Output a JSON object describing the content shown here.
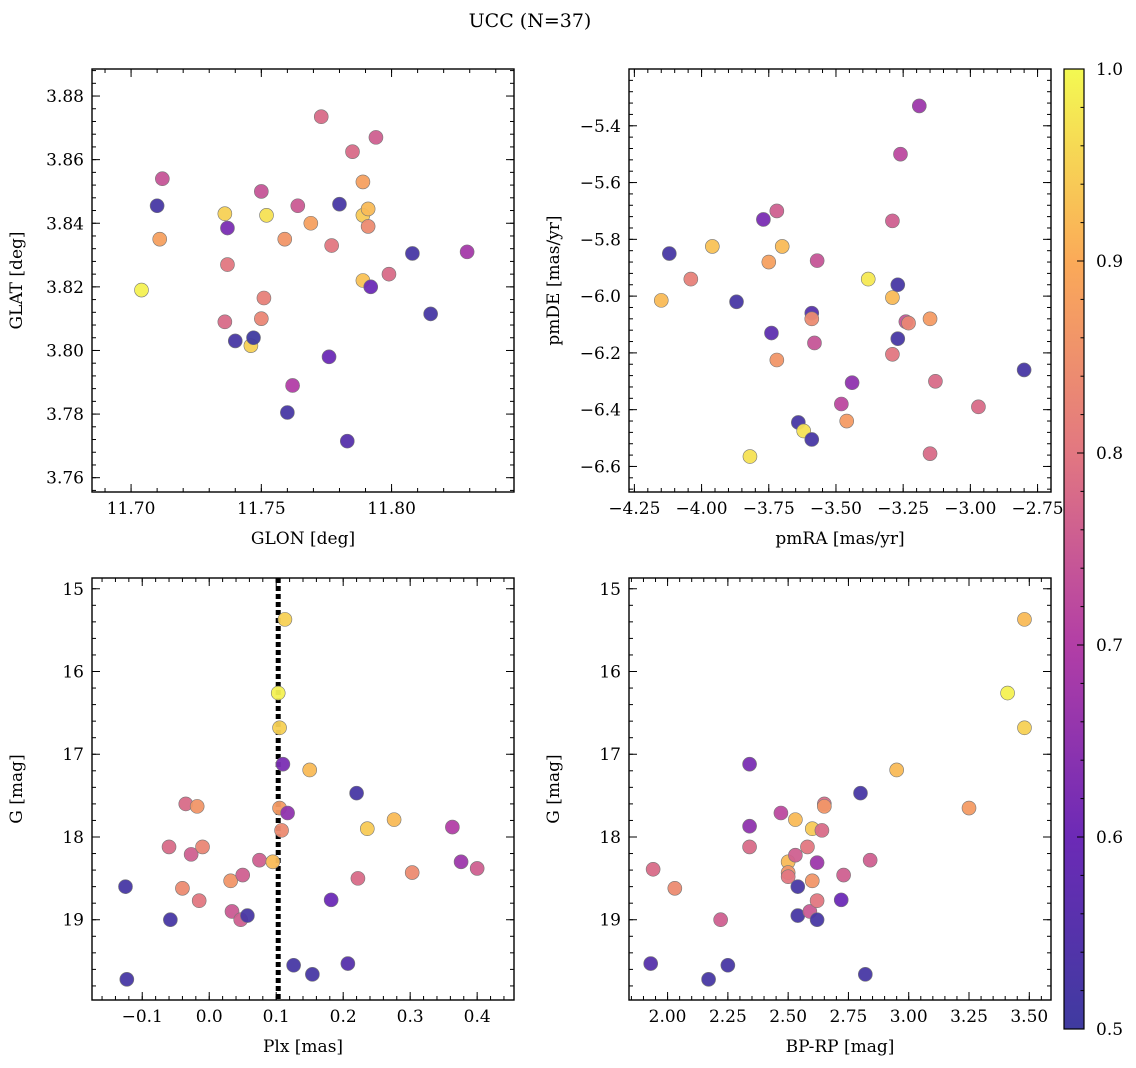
{
  "figure": {
    "title": "UCC (N=37)"
  },
  "colorbar": {
    "range": [
      0.5,
      1.0
    ],
    "ticks": [
      0.5,
      0.6,
      0.7,
      0.8,
      0.9,
      1.0
    ],
    "tick_labels": [
      "0.5",
      "0.6",
      "0.7",
      "0.8",
      "0.9",
      "1.0"
    ],
    "colormap": "plasma"
  },
  "chart_data": [
    {
      "type": "scatter",
      "xlabel": "GLON [deg]",
      "ylabel": "GLAT [deg]",
      "xlim": [
        11.685,
        11.847
      ],
      "ylim": [
        3.7555,
        3.8885
      ],
      "inverted_y": false,
      "xticks": [
        11.7,
        11.75,
        11.8
      ],
      "xtick_labels": [
        "11.70",
        "11.75",
        "11.80"
      ],
      "yticks": [
        3.76,
        3.78,
        3.8,
        3.82,
        3.84,
        3.86,
        3.88
      ],
      "ytick_labels": [
        "3.76",
        "3.78",
        "3.80",
        "3.82",
        "3.84",
        "3.86",
        "3.88"
      ],
      "points": [
        {
          "x": 11.704,
          "y": 3.819,
          "c": 0.99
        },
        {
          "x": 11.71,
          "y": 3.8455,
          "c": 0.52
        },
        {
          "x": 11.711,
          "y": 3.835,
          "c": 0.88
        },
        {
          "x": 11.712,
          "y": 3.854,
          "c": 0.74
        },
        {
          "x": 11.736,
          "y": 3.843,
          "c": 0.95
        },
        {
          "x": 11.737,
          "y": 3.8385,
          "c": 0.62
        },
        {
          "x": 11.737,
          "y": 3.827,
          "c": 0.8
        },
        {
          "x": 11.736,
          "y": 3.809,
          "c": 0.78
        },
        {
          "x": 11.74,
          "y": 3.803,
          "c": 0.52
        },
        {
          "x": 11.746,
          "y": 3.8015,
          "c": 0.95
        },
        {
          "x": 11.747,
          "y": 3.804,
          "c": 0.5
        },
        {
          "x": 11.75,
          "y": 3.85,
          "c": 0.74
        },
        {
          "x": 11.75,
          "y": 3.81,
          "c": 0.83
        },
        {
          "x": 11.751,
          "y": 3.8165,
          "c": 0.82
        },
        {
          "x": 11.752,
          "y": 3.8425,
          "c": 0.97
        },
        {
          "x": 11.759,
          "y": 3.835,
          "c": 0.86
        },
        {
          "x": 11.76,
          "y": 3.7805,
          "c": 0.52
        },
        {
          "x": 11.762,
          "y": 3.789,
          "c": 0.7
        },
        {
          "x": 11.764,
          "y": 3.8455,
          "c": 0.75
        },
        {
          "x": 11.769,
          "y": 3.84,
          "c": 0.88
        },
        {
          "x": 11.773,
          "y": 3.8735,
          "c": 0.78
        },
        {
          "x": 11.776,
          "y": 3.798,
          "c": 0.6
        },
        {
          "x": 11.777,
          "y": 3.833,
          "c": 0.8
        },
        {
          "x": 11.78,
          "y": 3.846,
          "c": 0.52
        },
        {
          "x": 11.783,
          "y": 3.7715,
          "c": 0.55
        },
        {
          "x": 11.785,
          "y": 3.8625,
          "c": 0.78
        },
        {
          "x": 11.789,
          "y": 3.853,
          "c": 0.88
        },
        {
          "x": 11.789,
          "y": 3.8425,
          "c": 0.94
        },
        {
          "x": 11.789,
          "y": 3.822,
          "c": 0.93
        },
        {
          "x": 11.791,
          "y": 3.8445,
          "c": 0.92
        },
        {
          "x": 11.791,
          "y": 3.839,
          "c": 0.84
        },
        {
          "x": 11.792,
          "y": 3.82,
          "c": 0.6
        },
        {
          "x": 11.794,
          "y": 3.867,
          "c": 0.76
        },
        {
          "x": 11.799,
          "y": 3.824,
          "c": 0.78
        },
        {
          "x": 11.808,
          "y": 3.8305,
          "c": 0.52
        },
        {
          "x": 11.815,
          "y": 3.8115,
          "c": 0.52
        },
        {
          "x": 11.829,
          "y": 3.831,
          "c": 0.68
        }
      ]
    },
    {
      "type": "scatter",
      "xlabel": "pmRA [mas/yr]",
      "ylabel": "pmDE [mas/yr]",
      "xlim": [
        -4.27,
        -2.7
      ],
      "ylim": [
        -6.69,
        -5.2
      ],
      "inverted_y": false,
      "xticks": [
        -4.25,
        -4.0,
        -3.75,
        -3.5,
        -3.25,
        -3.0,
        -2.75
      ],
      "xtick_labels": [
        "−4.25",
        "−4.00",
        "−3.75",
        "−3.50",
        "−3.25",
        "−3.00",
        "−2.75"
      ],
      "yticks": [
        -6.6,
        -6.4,
        -6.2,
        -6.0,
        -5.8,
        -5.6,
        -5.4
      ],
      "ytick_labels": [
        "−6.6",
        "−6.4",
        "−6.2",
        "−6.0",
        "−5.8",
        "−5.6",
        "−5.4"
      ],
      "points": [
        {
          "x": -4.15,
          "y": -6.015,
          "c": 0.92
        },
        {
          "x": -4.12,
          "y": -5.85,
          "c": 0.52
        },
        {
          "x": -4.04,
          "y": -5.94,
          "c": 0.82
        },
        {
          "x": -3.96,
          "y": -5.825,
          "c": 0.93
        },
        {
          "x": -3.87,
          "y": -6.02,
          "c": 0.52
        },
        {
          "x": -3.82,
          "y": -6.565,
          "c": 0.97
        },
        {
          "x": -3.77,
          "y": -5.73,
          "c": 0.62
        },
        {
          "x": -3.75,
          "y": -5.88,
          "c": 0.88
        },
        {
          "x": -3.74,
          "y": -6.13,
          "c": 0.57
        },
        {
          "x": -3.72,
          "y": -5.7,
          "c": 0.76
        },
        {
          "x": -3.72,
          "y": -6.225,
          "c": 0.86
        },
        {
          "x": -3.7,
          "y": -5.825,
          "c": 0.92
        },
        {
          "x": -3.64,
          "y": -6.445,
          "c": 0.52
        },
        {
          "x": -3.62,
          "y": -6.475,
          "c": 0.97
        },
        {
          "x": -3.59,
          "y": -6.06,
          "c": 0.55
        },
        {
          "x": -3.59,
          "y": -6.08,
          "c": 0.84
        },
        {
          "x": -3.59,
          "y": -6.505,
          "c": 0.52
        },
        {
          "x": -3.58,
          "y": -6.165,
          "c": 0.74
        },
        {
          "x": -3.57,
          "y": -5.875,
          "c": 0.74
        },
        {
          "x": -3.48,
          "y": -6.38,
          "c": 0.72
        },
        {
          "x": -3.46,
          "y": -6.44,
          "c": 0.87
        },
        {
          "x": -3.44,
          "y": -6.305,
          "c": 0.65
        },
        {
          "x": -3.38,
          "y": -5.94,
          "c": 0.98
        },
        {
          "x": -3.29,
          "y": -6.005,
          "c": 0.92
        },
        {
          "x": -3.29,
          "y": -5.735,
          "c": 0.76
        },
        {
          "x": -3.29,
          "y": -6.205,
          "c": 0.8
        },
        {
          "x": -3.27,
          "y": -5.96,
          "c": 0.52
        },
        {
          "x": -3.27,
          "y": -6.15,
          "c": 0.52
        },
        {
          "x": -3.26,
          "y": -5.5,
          "c": 0.72
        },
        {
          "x": -3.24,
          "y": -6.09,
          "c": 0.74
        },
        {
          "x": -3.23,
          "y": -6.095,
          "c": 0.83
        },
        {
          "x": -3.19,
          "y": -5.33,
          "c": 0.67
        },
        {
          "x": -3.15,
          "y": -6.08,
          "c": 0.87
        },
        {
          "x": -3.15,
          "y": -6.555,
          "c": 0.78
        },
        {
          "x": -3.13,
          "y": -6.3,
          "c": 0.78
        },
        {
          "x": -2.97,
          "y": -6.39,
          "c": 0.78
        },
        {
          "x": -2.8,
          "y": -6.26,
          "c": 0.52
        }
      ]
    },
    {
      "type": "scatter",
      "xlabel": "Plx [mas]",
      "ylabel": "G [mag]",
      "xlim": [
        -0.175,
        0.455
      ],
      "ylim": [
        14.87,
        19.97
      ],
      "inverted_y": true,
      "xticks": [
        -0.1,
        0.0,
        0.1,
        0.2,
        0.3,
        0.4
      ],
      "xtick_labels": [
        "−0.1",
        "0.0",
        "0.1",
        "0.2",
        "0.3",
        "0.4"
      ],
      "yticks": [
        15,
        16,
        17,
        18,
        19
      ],
      "ytick_labels": [
        "15",
        "16",
        "17",
        "18",
        "19"
      ],
      "vline": {
        "x": 0.103,
        "style": "dotted"
      },
      "points": [
        {
          "x": -0.125,
          "y": 18.6,
          "c": 0.52
        },
        {
          "x": -0.123,
          "y": 19.72,
          "c": 0.52
        },
        {
          "x": -0.06,
          "y": 18.12,
          "c": 0.78
        },
        {
          "x": -0.058,
          "y": 19.0,
          "c": 0.52
        },
        {
          "x": -0.04,
          "y": 18.62,
          "c": 0.84
        },
        {
          "x": -0.035,
          "y": 17.6,
          "c": 0.78
        },
        {
          "x": -0.027,
          "y": 18.21,
          "c": 0.76
        },
        {
          "x": -0.018,
          "y": 17.63,
          "c": 0.86
        },
        {
          "x": -0.015,
          "y": 18.77,
          "c": 0.8
        },
        {
          "x": -0.01,
          "y": 18.12,
          "c": 0.83
        },
        {
          "x": 0.032,
          "y": 18.53,
          "c": 0.86
        },
        {
          "x": 0.034,
          "y": 18.9,
          "c": 0.75
        },
        {
          "x": 0.047,
          "y": 19.0,
          "c": 0.76
        },
        {
          "x": 0.05,
          "y": 18.46,
          "c": 0.76
        },
        {
          "x": 0.057,
          "y": 18.95,
          "c": 0.52
        },
        {
          "x": 0.075,
          "y": 18.28,
          "c": 0.76
        },
        {
          "x": 0.095,
          "y": 18.3,
          "c": 0.92
        },
        {
          "x": 0.103,
          "y": 16.26,
          "c": 0.99
        },
        {
          "x": 0.105,
          "y": 16.68,
          "c": 0.95
        },
        {
          "x": 0.105,
          "y": 17.65,
          "c": 0.87
        },
        {
          "x": 0.108,
          "y": 17.92,
          "c": 0.84
        },
        {
          "x": 0.11,
          "y": 17.12,
          "c": 0.62
        },
        {
          "x": 0.113,
          "y": 15.37,
          "c": 0.95
        },
        {
          "x": 0.117,
          "y": 17.71,
          "c": 0.65
        },
        {
          "x": 0.126,
          "y": 19.55,
          "c": 0.52
        },
        {
          "x": 0.15,
          "y": 17.19,
          "c": 0.92
        },
        {
          "x": 0.154,
          "y": 19.66,
          "c": 0.52
        },
        {
          "x": 0.182,
          "y": 18.76,
          "c": 0.6
        },
        {
          "x": 0.207,
          "y": 19.53,
          "c": 0.55
        },
        {
          "x": 0.22,
          "y": 17.47,
          "c": 0.52
        },
        {
          "x": 0.222,
          "y": 18.5,
          "c": 0.78
        },
        {
          "x": 0.236,
          "y": 17.9,
          "c": 0.94
        },
        {
          "x": 0.276,
          "y": 17.79,
          "c": 0.92
        },
        {
          "x": 0.303,
          "y": 18.43,
          "c": 0.84
        },
        {
          "x": 0.363,
          "y": 17.88,
          "c": 0.7
        },
        {
          "x": 0.376,
          "y": 18.3,
          "c": 0.67
        },
        {
          "x": 0.4,
          "y": 18.38,
          "c": 0.76
        }
      ]
    },
    {
      "type": "scatter",
      "xlabel": "BP-RP [mag]",
      "ylabel": "G [mag]",
      "xlim": [
        1.84,
        3.59
      ],
      "ylim": [
        14.87,
        19.97
      ],
      "inverted_y": true,
      "xticks": [
        2.0,
        2.25,
        2.5,
        2.75,
        3.0,
        3.25,
        3.5
      ],
      "xtick_labels": [
        "2.00",
        "2.25",
        "2.50",
        "2.75",
        "3.00",
        "3.25",
        "3.50"
      ],
      "yticks": [
        15,
        16,
        17,
        18,
        19
      ],
      "ytick_labels": [
        "15",
        "16",
        "17",
        "18",
        "19"
      ],
      "points": [
        {
          "x": 1.93,
          "y": 19.53,
          "c": 0.55
        },
        {
          "x": 1.94,
          "y": 18.39,
          "c": 0.78
        },
        {
          "x": 2.03,
          "y": 18.62,
          "c": 0.84
        },
        {
          "x": 2.17,
          "y": 19.72,
          "c": 0.52
        },
        {
          "x": 2.22,
          "y": 19.0,
          "c": 0.76
        },
        {
          "x": 2.25,
          "y": 19.55,
          "c": 0.52
        },
        {
          "x": 2.34,
          "y": 17.12,
          "c": 0.62
        },
        {
          "x": 2.34,
          "y": 17.87,
          "c": 0.65
        },
        {
          "x": 2.34,
          "y": 18.12,
          "c": 0.78
        },
        {
          "x": 2.47,
          "y": 17.71,
          "c": 0.72
        },
        {
          "x": 2.5,
          "y": 18.3,
          "c": 0.92
        },
        {
          "x": 2.5,
          "y": 18.43,
          "c": 0.86
        },
        {
          "x": 2.5,
          "y": 18.48,
          "c": 0.8
        },
        {
          "x": 2.53,
          "y": 17.79,
          "c": 0.92
        },
        {
          "x": 2.53,
          "y": 18.22,
          "c": 0.76
        },
        {
          "x": 2.54,
          "y": 18.6,
          "c": 0.52
        },
        {
          "x": 2.54,
          "y": 18.95,
          "c": 0.52
        },
        {
          "x": 2.58,
          "y": 18.12,
          "c": 0.8
        },
        {
          "x": 2.59,
          "y": 18.9,
          "c": 0.75
        },
        {
          "x": 2.6,
          "y": 17.9,
          "c": 0.94
        },
        {
          "x": 2.6,
          "y": 18.53,
          "c": 0.86
        },
        {
          "x": 2.62,
          "y": 18.31,
          "c": 0.67
        },
        {
          "x": 2.62,
          "y": 18.77,
          "c": 0.8
        },
        {
          "x": 2.62,
          "y": 19.0,
          "c": 0.52
        },
        {
          "x": 2.64,
          "y": 17.92,
          "c": 0.78
        },
        {
          "x": 2.65,
          "y": 17.6,
          "c": 0.78
        },
        {
          "x": 2.65,
          "y": 17.63,
          "c": 0.86
        },
        {
          "x": 2.72,
          "y": 18.76,
          "c": 0.6
        },
        {
          "x": 2.73,
          "y": 18.46,
          "c": 0.76
        },
        {
          "x": 2.8,
          "y": 17.47,
          "c": 0.52
        },
        {
          "x": 2.82,
          "y": 19.66,
          "c": 0.52
        },
        {
          "x": 2.84,
          "y": 18.28,
          "c": 0.76
        },
        {
          "x": 2.95,
          "y": 17.19,
          "c": 0.92
        },
        {
          "x": 3.25,
          "y": 17.65,
          "c": 0.87
        },
        {
          "x": 3.41,
          "y": 16.26,
          "c": 0.99
        },
        {
          "x": 3.48,
          "y": 16.68,
          "c": 0.95
        },
        {
          "x": 3.48,
          "y": 15.37,
          "c": 0.92
        }
      ]
    }
  ]
}
